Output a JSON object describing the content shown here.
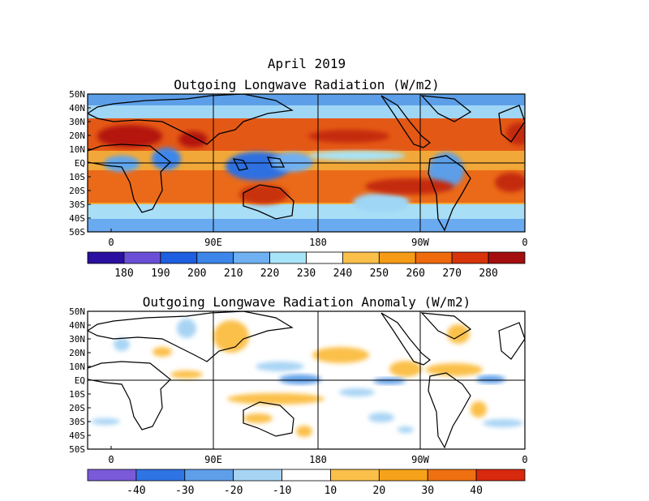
{
  "title": "April 2019",
  "top_panel": {
    "title": "Outgoing Longwave Radiation (W/m2)",
    "lat_ticks": [
      "50N",
      "40N",
      "30N",
      "20N",
      "10N",
      "EQ",
      "10S",
      "20S",
      "30S",
      "40S",
      "50S"
    ],
    "lon_ticks": [
      "0",
      "90E",
      "180",
      "90W",
      "0"
    ],
    "colorbar": {
      "labels": [
        "180",
        "190",
        "200",
        "210",
        "220",
        "230",
        "240",
        "250",
        "260",
        "270",
        "280"
      ],
      "colors": [
        "#2a0fa0",
        "#6a4fd6",
        "#1e5ee0",
        "#3c86ea",
        "#6fb0f2",
        "#a8e4f8",
        "#ffffff",
        "#fbc04a",
        "#f69b16",
        "#ee6a0c",
        "#d8340a",
        "#a50e0e"
      ]
    }
  },
  "bottom_panel": {
    "title": "Outgoing Longwave Radiation Anomaly (W/m2)",
    "lat_ticks": [
      "50N",
      "40N",
      "30N",
      "20N",
      "10N",
      "EQ",
      "10S",
      "20S",
      "30S",
      "40S",
      "50S"
    ],
    "lon_ticks": [
      "0",
      "90E",
      "180",
      "90W",
      "0"
    ],
    "colorbar": {
      "labels": [
        "-40",
        "-30",
        "-20",
        "-10",
        "10",
        "20",
        "30",
        "40"
      ],
      "colors": [
        "#7a5ad8",
        "#2f74e4",
        "#5f9ee8",
        "#a8d4f4",
        "#ffffff",
        "#fbc04a",
        "#f6a21a",
        "#ef7010",
        "#d8280e"
      ]
    }
  }
}
